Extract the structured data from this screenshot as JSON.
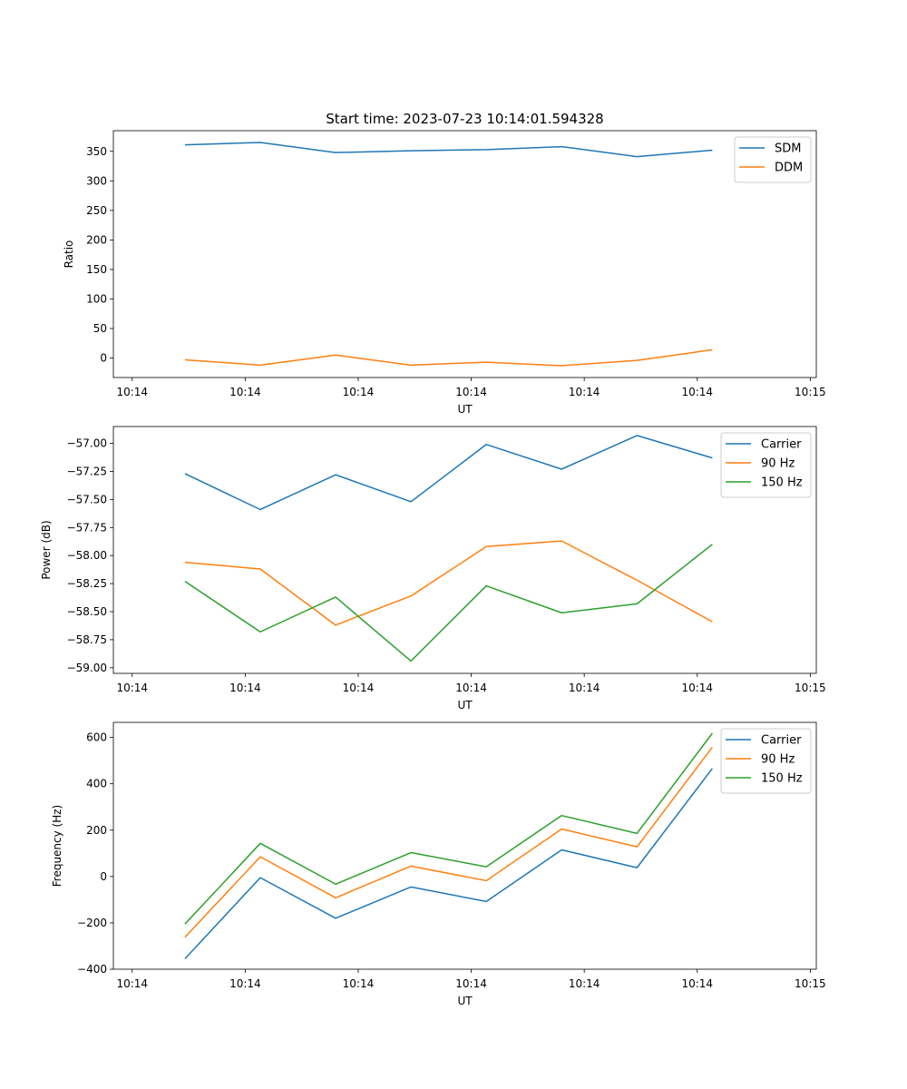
{
  "figure_title": "Start time: 2023-07-23 10:14:01.594328",
  "colors": {
    "blue": "#1f77b4",
    "orange": "#ff7f0e",
    "green": "#2ca02c"
  },
  "chart_data": [
    {
      "type": "line",
      "title": "Start time: 2023-07-23 10:14:01.594328",
      "xlabel": "UT",
      "ylabel": "Ratio",
      "xlim": [
        0,
        9.33
      ],
      "ylim": [
        -33,
        385
      ],
      "x": [
        0.95,
        1.95,
        2.95,
        3.95,
        4.95,
        5.95,
        6.95,
        7.95
      ],
      "xticks": [
        0.25,
        1.75,
        3.25,
        4.75,
        6.25,
        7.75,
        9.25
      ],
      "xtick_labels": [
        "10:14",
        "10:14",
        "10:14",
        "10:14",
        "10:14",
        "10:14",
        "10:15"
      ],
      "yticks": [
        0,
        50,
        100,
        150,
        200,
        250,
        300,
        350
      ],
      "ytick_labels": [
        "0",
        "50",
        "100",
        "150",
        "200",
        "250",
        "300",
        "350"
      ],
      "legend_position": "top-right",
      "series": [
        {
          "name": "SDM",
          "color": "#1f77b4",
          "values": [
            361,
            365,
            348,
            351,
            353,
            358,
            341,
            352
          ]
        },
        {
          "name": "DDM",
          "color": "#ff7f0e",
          "values": [
            -3,
            -12,
            5,
            -12,
            -7,
            -13,
            -4,
            14
          ]
        }
      ]
    },
    {
      "type": "line",
      "title": "",
      "xlabel": "UT",
      "ylabel": "Power (dB)",
      "xlim": [
        0,
        9.33
      ],
      "ylim": [
        -59.05,
        -56.85
      ],
      "x": [
        0.95,
        1.95,
        2.95,
        3.95,
        4.95,
        5.95,
        6.95,
        7.95
      ],
      "xticks": [
        0.25,
        1.75,
        3.25,
        4.75,
        6.25,
        7.75,
        9.25
      ],
      "xtick_labels": [
        "10:14",
        "10:14",
        "10:14",
        "10:14",
        "10:14",
        "10:14",
        "10:15"
      ],
      "yticks": [
        -59.0,
        -58.75,
        -58.5,
        -58.25,
        -58.0,
        -57.75,
        -57.5,
        -57.25,
        -57.0
      ],
      "ytick_labels": [
        "−59.00",
        "−58.75",
        "−58.50",
        "−58.25",
        "−58.00",
        "−57.75",
        "−57.50",
        "−57.25",
        "−57.00"
      ],
      "legend_position": "top-right",
      "series": [
        {
          "name": "Carrier",
          "color": "#1f77b4",
          "values": [
            -57.27,
            -57.59,
            -57.28,
            -57.52,
            -57.01,
            -57.23,
            -56.93,
            -57.13
          ]
        },
        {
          "name": "90 Hz",
          "color": "#ff7f0e",
          "values": [
            -58.06,
            -58.12,
            -58.62,
            -58.36,
            -57.92,
            -57.87,
            -58.22,
            -58.59
          ]
        },
        {
          "name": "150 Hz",
          "color": "#2ca02c",
          "values": [
            -58.23,
            -58.68,
            -58.37,
            -58.94,
            -58.27,
            -58.51,
            -58.43,
            -57.9
          ]
        }
      ]
    },
    {
      "type": "line",
      "title": "",
      "xlabel": "UT",
      "ylabel": "Frequency (Hz)",
      "xlim": [
        0,
        9.33
      ],
      "ylim": [
        -400,
        665
      ],
      "x": [
        0.95,
        1.95,
        2.95,
        3.95,
        4.95,
        5.95,
        6.95,
        7.95
      ],
      "xticks": [
        0.25,
        1.75,
        3.25,
        4.75,
        6.25,
        7.75,
        9.25
      ],
      "xtick_labels": [
        "10:14",
        "10:14",
        "10:14",
        "10:14",
        "10:14",
        "10:14",
        "10:15"
      ],
      "yticks": [
        -400,
        -200,
        0,
        200,
        400,
        600
      ],
      "ytick_labels": [
        "−400",
        "−200",
        "0",
        "200",
        "400",
        "600"
      ],
      "legend_position": "top-right",
      "series": [
        {
          "name": "Carrier",
          "color": "#1f77b4",
          "values": [
            -355,
            -5,
            -180,
            -45,
            -108,
            115,
            38,
            466
          ]
        },
        {
          "name": "90 Hz",
          "color": "#ff7f0e",
          "values": [
            -262,
            85,
            -92,
            45,
            -18,
            205,
            128,
            558
          ]
        },
        {
          "name": "150 Hz",
          "color": "#2ca02c",
          "values": [
            -205,
            143,
            -33,
            103,
            42,
            263,
            186,
            618
          ]
        }
      ]
    }
  ]
}
